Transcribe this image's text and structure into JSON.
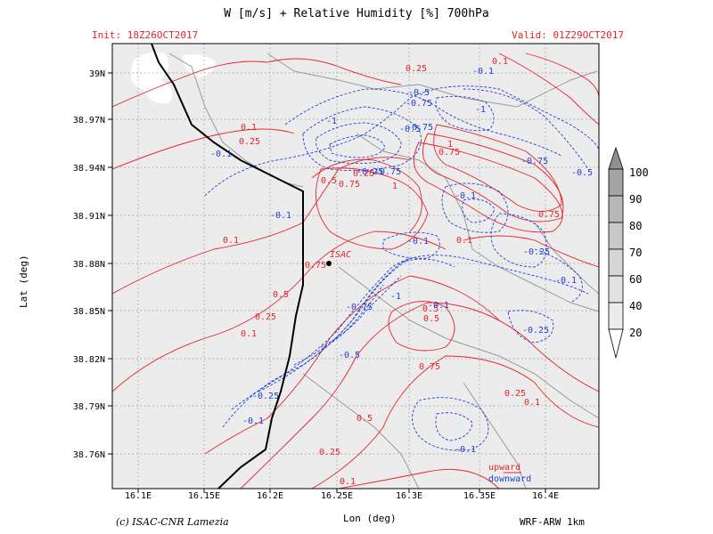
{
  "header": {
    "title": "W [m/s] + Relative Humidity [%] 700hPa",
    "init": "Init: 18Z26OCT2017",
    "valid": "Valid: 01Z29OCT2017"
  },
  "footer": {
    "credit": "(c) ISAC-CNR Lamezia",
    "model": "WRF-ARW 1km"
  },
  "colors": {
    "upward": "#e8232a",
    "downward": "#1f3fd6",
    "coast": "#000000",
    "grid": "#8c8c8c",
    "land_rh": "#ececec"
  },
  "map": {
    "xaxis_label": "Lon (deg)",
    "yaxis_label": "Lat (deg)",
    "lon_ticks": [
      "16.1E",
      "16.15E",
      "16.2E",
      "16.25E",
      "16.3E",
      "16.35E",
      "16.4E"
    ],
    "lat_ticks": [
      "39N",
      "38.97N",
      "38.94N",
      "38.91N",
      "38.88N",
      "38.85N",
      "38.82N",
      "38.79N",
      "38.76N"
    ],
    "station": {
      "name": "ISAC",
      "lon": 16.238,
      "lat": 38.879
    }
  },
  "contours": {
    "upward_labels": [
      "0.25",
      "0.1",
      "0.1",
      "0.25",
      "0.5",
      "0.75",
      "1",
      "0.75",
      "0.75",
      "0.5",
      "0.25",
      "0.1",
      "0.1",
      "0.1",
      "0.5",
      "0.75",
      "0.5",
      "0.25",
      "0.1",
      "0.1",
      "0.25",
      "0.5",
      "0.75",
      "1",
      "0.25",
      "0.1",
      "0.1",
      "0.5",
      "0.1"
    ],
    "downward_labels": [
      "-0.1",
      "-0.5",
      "-0.75",
      "-1",
      "-0.1",
      "-0.1",
      "-0.25",
      "-0.75",
      "-1",
      "-0.5",
      "-0.1",
      "-0.75",
      "-0.5",
      "-0.1",
      "-0.25",
      "-0.1",
      "-1",
      "-0.75",
      "-0.5",
      "-0.25",
      "-0.25",
      "-0.1",
      "-0.1",
      "-0.1",
      "-0.75"
    ]
  },
  "legend": {
    "upward_label": "upward",
    "downward_label": "downward",
    "colorbar_values": [
      "100",
      "90",
      "80",
      "70",
      "60",
      "40",
      "20"
    ]
  }
}
